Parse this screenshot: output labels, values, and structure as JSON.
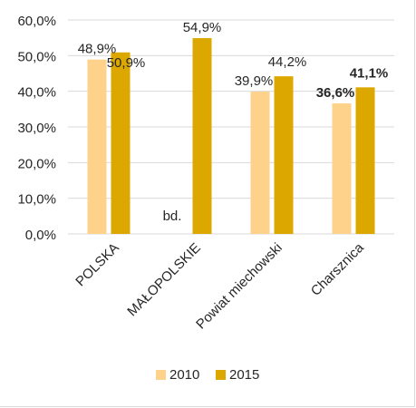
{
  "chart_data": {
    "type": "bar",
    "categories": [
      "POLSKA",
      "MAŁOPOLSKIE",
      "Powiat miechowski",
      "Charsznica"
    ],
    "series": [
      {
        "name": "2010",
        "values": [
          48.9,
          null,
          39.9,
          36.6
        ],
        "labels": [
          "48,9%",
          "bd.",
          "39,9%",
          "36,6%"
        ],
        "color": "#FFD28C"
      },
      {
        "name": "2015",
        "values": [
          50.9,
          54.9,
          44.2,
          41.1
        ],
        "labels": [
          "50,9%",
          "54,9%",
          "44,2%",
          "41,1%"
        ],
        "color": "#DCA800"
      }
    ],
    "ylim": [
      0,
      60
    ],
    "yticks": [
      0,
      10,
      20,
      30,
      40,
      50,
      60
    ],
    "ytick_labels": [
      "0,0%",
      "10,0%",
      "20,0%",
      "30,0%",
      "40,0%",
      "50,0%",
      "60,0%"
    ],
    "title": "",
    "xlabel": "",
    "ylabel": "",
    "grid": true,
    "legend_position": "bottom",
    "bold_labels_category": "Charsznica"
  }
}
